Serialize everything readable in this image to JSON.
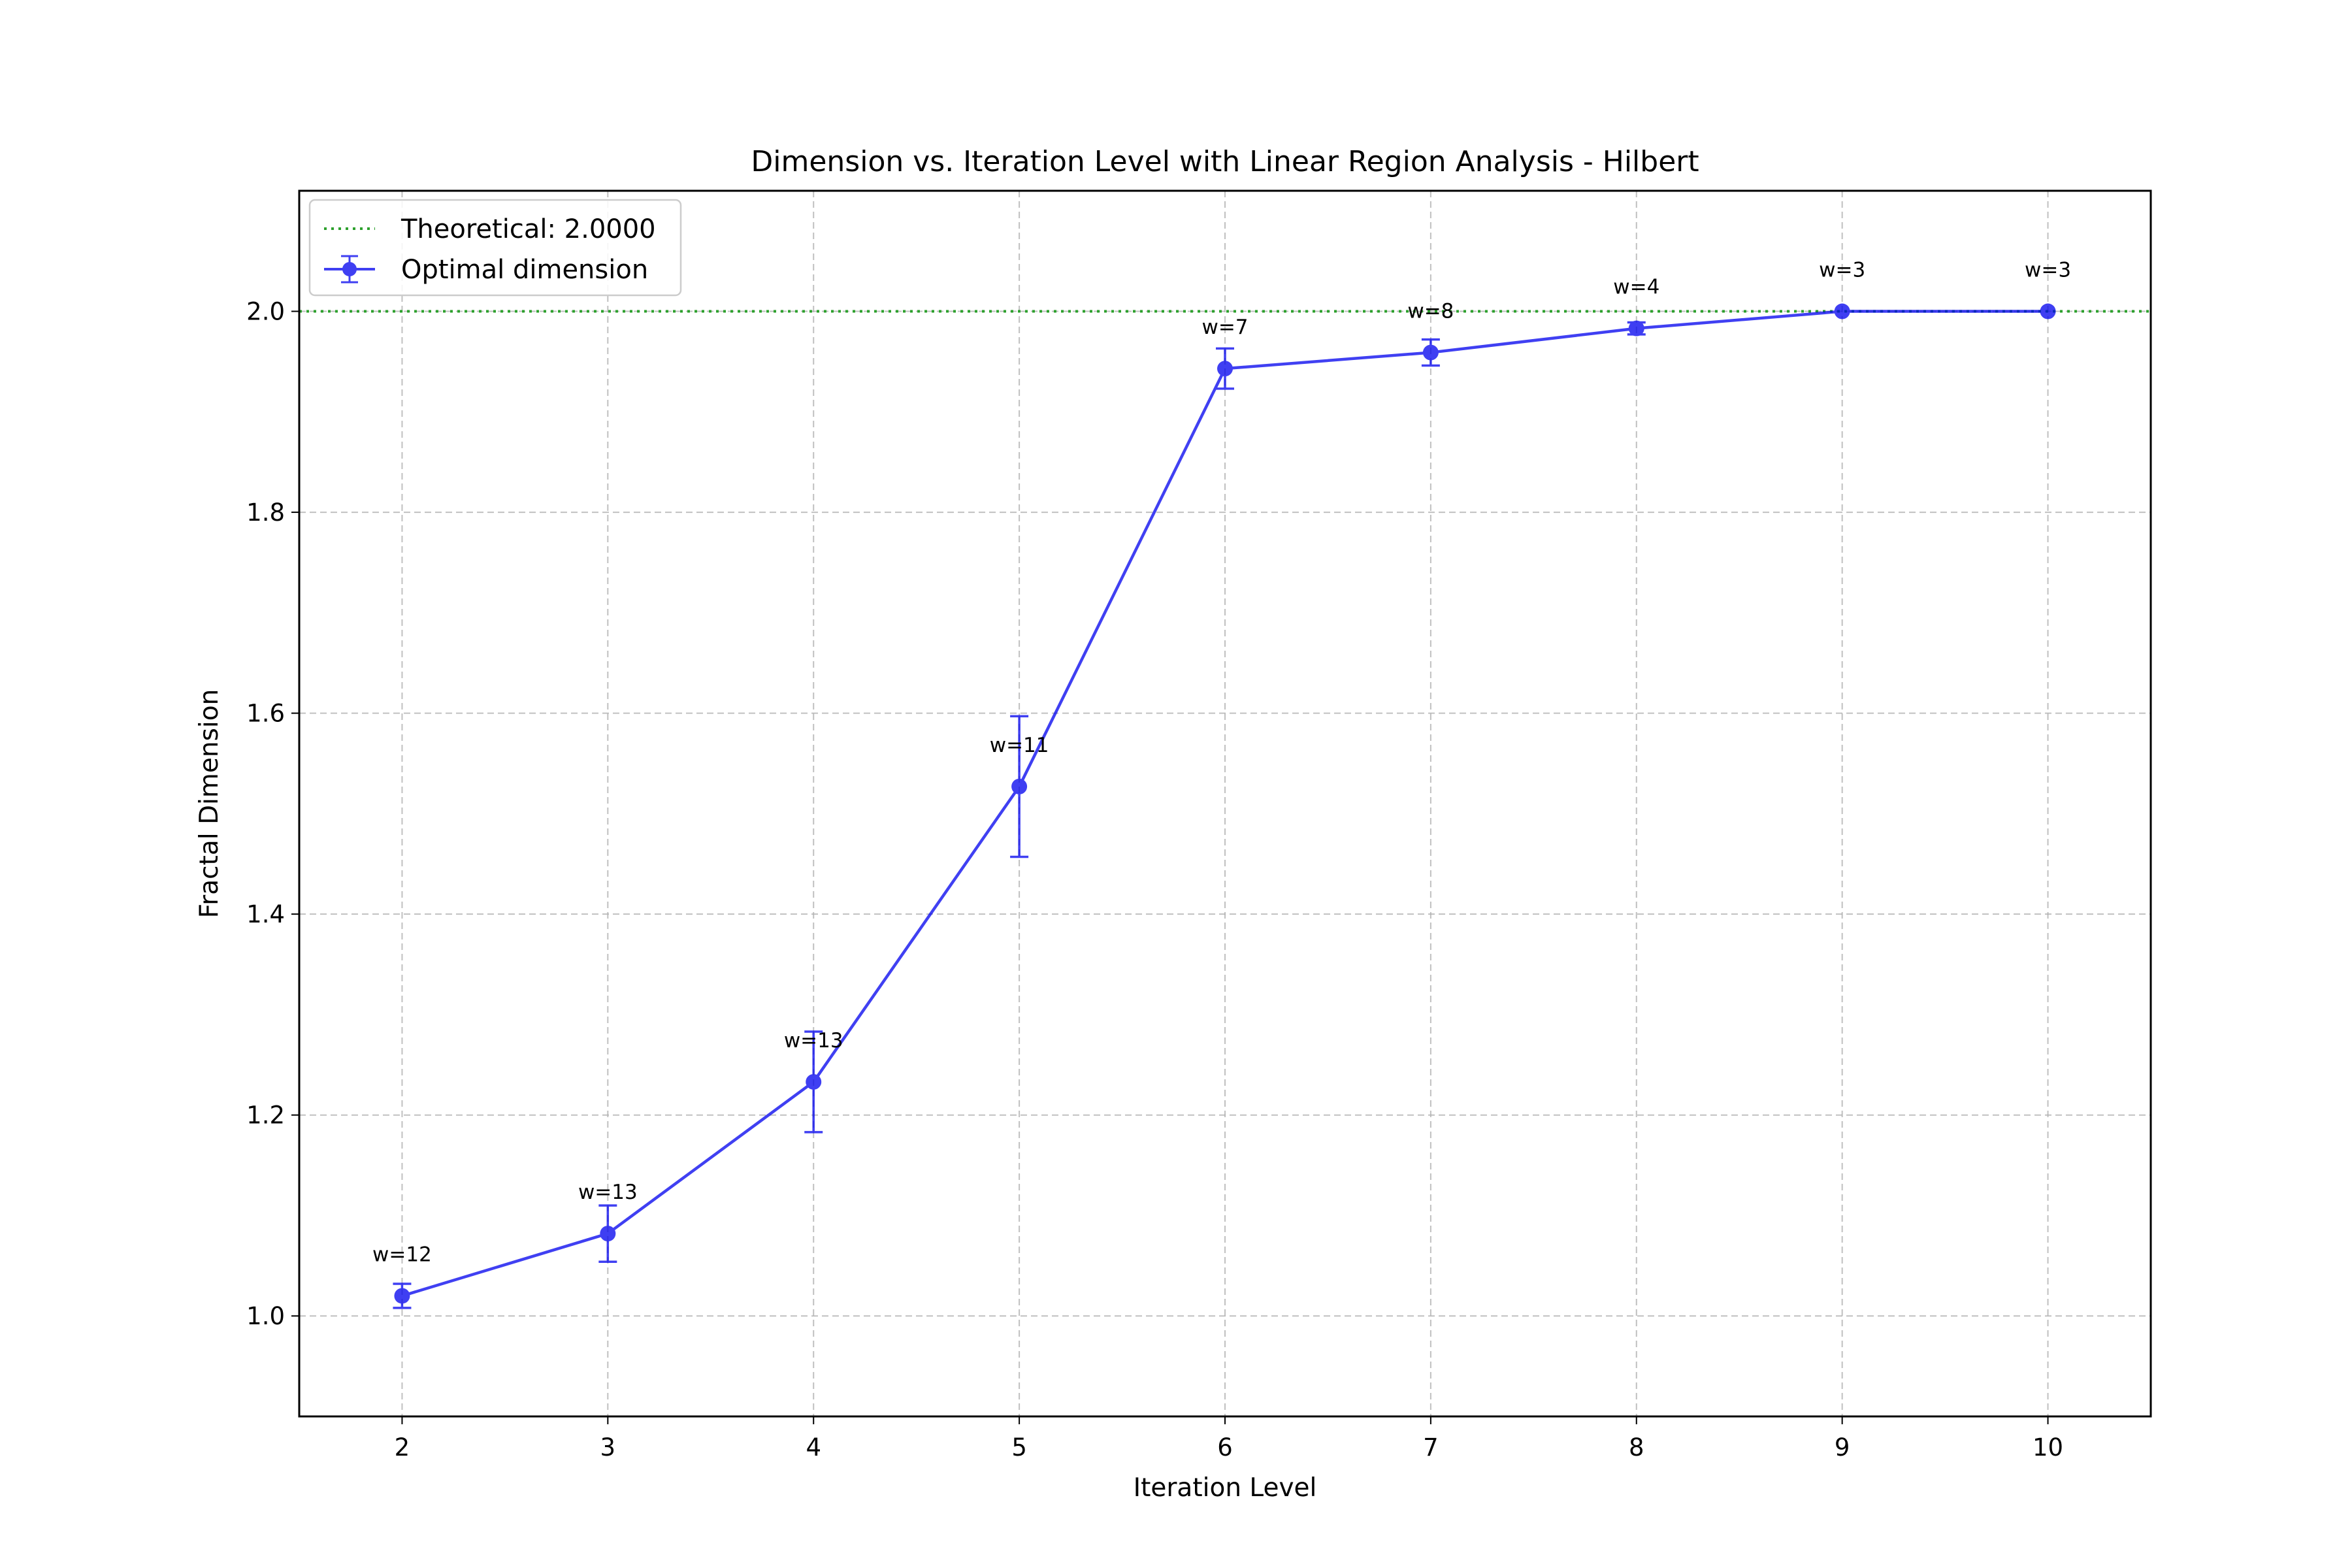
{
  "chart_data": {
    "type": "line",
    "title": "Dimension vs. Iteration Level with Linear Region Analysis - Hilbert",
    "xlabel": "Iteration Level",
    "ylabel": "Fractal Dimension",
    "xlim": [
      1.5,
      10.5
    ],
    "ylim": [
      0.9,
      2.12
    ],
    "xticks": [
      2,
      3,
      4,
      5,
      6,
      7,
      8,
      9,
      10
    ],
    "yticks": [
      1.0,
      1.2,
      1.4,
      1.6,
      1.8,
      2.0
    ],
    "ytick_labels": [
      "1.0",
      "1.2",
      "1.4",
      "1.6",
      "1.8",
      "2.0"
    ],
    "grid": true,
    "legend_position": "upper-left",
    "reference_line": {
      "name": "Theoretical: 2.0000",
      "y": 2.0,
      "color": "#2ca02c",
      "style": "dotted"
    },
    "series": [
      {
        "name": "Optimal dimension",
        "color": "#0000ee",
        "x": [
          2,
          3,
          4,
          5,
          6,
          7,
          8,
          9,
          10
        ],
        "y": [
          1.02,
          1.082,
          1.233,
          1.527,
          1.943,
          1.959,
          1.983,
          2.0,
          2.0
        ],
        "yerr": [
          0.012,
          0.028,
          0.05,
          0.07,
          0.02,
          0.013,
          0.006,
          0.0,
          0.0
        ],
        "annotations": [
          "w=12",
          "w=13",
          "w=13",
          "w=11",
          "w=7",
          "w=8",
          "w=4",
          "w=3",
          "w=3"
        ]
      }
    ]
  }
}
